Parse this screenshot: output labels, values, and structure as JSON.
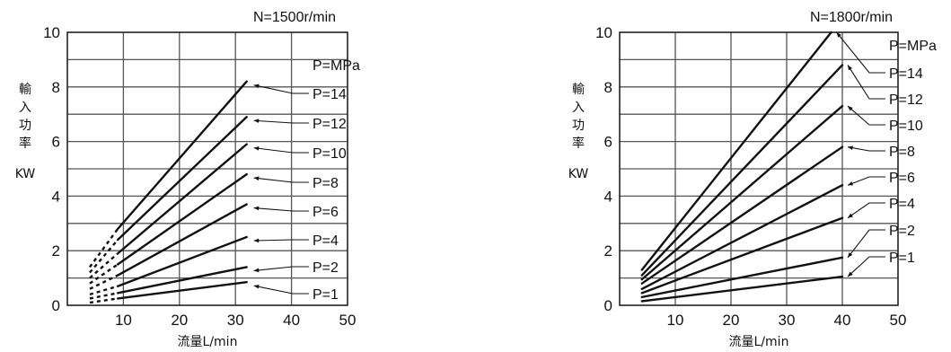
{
  "chart_data": [
    {
      "type": "line",
      "title": "N=1500r/min",
      "ylabel": [
        "輸",
        "入",
        "功",
        "率",
        "KW"
      ],
      "xlabel": "流量L/min",
      "pressure_unit": "P=MPa",
      "xlim": [
        0,
        50
      ],
      "ylim": [
        0,
        10
      ],
      "x_ticks": [
        "10",
        "20",
        "30",
        "40",
        "50"
      ],
      "y_ticks": [
        "0",
        "2",
        "4",
        "6",
        "8",
        "10"
      ],
      "grid": true,
      "series": [
        {
          "name": "P=14",
          "dashed": {
            "x": [
              4,
              9
            ],
            "y": [
              1.4,
              2.8
            ]
          },
          "x": [
            9,
            32
          ],
          "y": [
            2.8,
            8.2
          ]
        },
        {
          "name": "P=12",
          "dashed": {
            "x": [
              4,
              9
            ],
            "y": [
              1.2,
              2.4
            ]
          },
          "x": [
            9,
            32
          ],
          "y": [
            2.4,
            6.9
          ]
        },
        {
          "name": "P=10",
          "dashed": {
            "x": [
              4,
              9
            ],
            "y": [
              1.0,
              1.9
            ]
          },
          "x": [
            9,
            32
          ],
          "y": [
            1.9,
            5.9
          ]
        },
        {
          "name": "P=8",
          "dashed": {
            "x": [
              4,
              9
            ],
            "y": [
              0.8,
              1.5
            ]
          },
          "x": [
            9,
            32
          ],
          "y": [
            1.5,
            4.8
          ]
        },
        {
          "name": "P=6",
          "dashed": {
            "x": [
              4,
              9
            ],
            "y": [
              0.6,
              1.1
            ]
          },
          "x": [
            9,
            32
          ],
          "y": [
            1.1,
            3.7
          ]
        },
        {
          "name": "P=4",
          "dashed": {
            "x": [
              4,
              9
            ],
            "y": [
              0.4,
              0.7
            ]
          },
          "x": [
            9,
            32
          ],
          "y": [
            0.7,
            2.5
          ]
        },
        {
          "name": "P=2",
          "dashed": {
            "x": [
              4,
              9
            ],
            "y": [
              0.25,
              0.45
            ]
          },
          "x": [
            9,
            32
          ],
          "y": [
            0.45,
            1.4
          ]
        },
        {
          "name": "P=1",
          "dashed": {
            "x": [
              4,
              9
            ],
            "y": [
              0.1,
              0.25
            ]
          },
          "x": [
            9,
            32
          ],
          "y": [
            0.25,
            0.85
          ]
        }
      ]
    },
    {
      "type": "line",
      "title": "N=1800r/min",
      "ylabel": [
        "輸",
        "入",
        "功",
        "率",
        "KW"
      ],
      "xlabel": "流量L/min",
      "pressure_unit": "P=MPa",
      "xlim": [
        0,
        50
      ],
      "ylim": [
        0,
        10
      ],
      "x_ticks": [
        "10",
        "20",
        "30",
        "40",
        "50"
      ],
      "y_ticks": [
        "0",
        "2",
        "4",
        "6",
        "8",
        "10"
      ],
      "grid": true,
      "series": [
        {
          "name": "P=14",
          "x": [
            4,
            38
          ],
          "y": [
            1.3,
            10.0
          ]
        },
        {
          "name": "P=12",
          "x": [
            4,
            40
          ],
          "y": [
            1.1,
            8.8
          ]
        },
        {
          "name": "P=10",
          "x": [
            4,
            40
          ],
          "y": [
            0.95,
            7.3
          ]
        },
        {
          "name": "P=8",
          "x": [
            4,
            40
          ],
          "y": [
            0.8,
            5.8
          ]
        },
        {
          "name": "P=6",
          "x": [
            4,
            40
          ],
          "y": [
            0.6,
            4.4
          ]
        },
        {
          "name": "P=4",
          "x": [
            4,
            40
          ],
          "y": [
            0.45,
            3.2
          ]
        },
        {
          "name": "P=2",
          "x": [
            4,
            40
          ],
          "y": [
            0.3,
            1.75
          ]
        },
        {
          "name": "P=1",
          "x": [
            4,
            40
          ],
          "y": [
            0.15,
            1.05
          ]
        }
      ]
    }
  ]
}
